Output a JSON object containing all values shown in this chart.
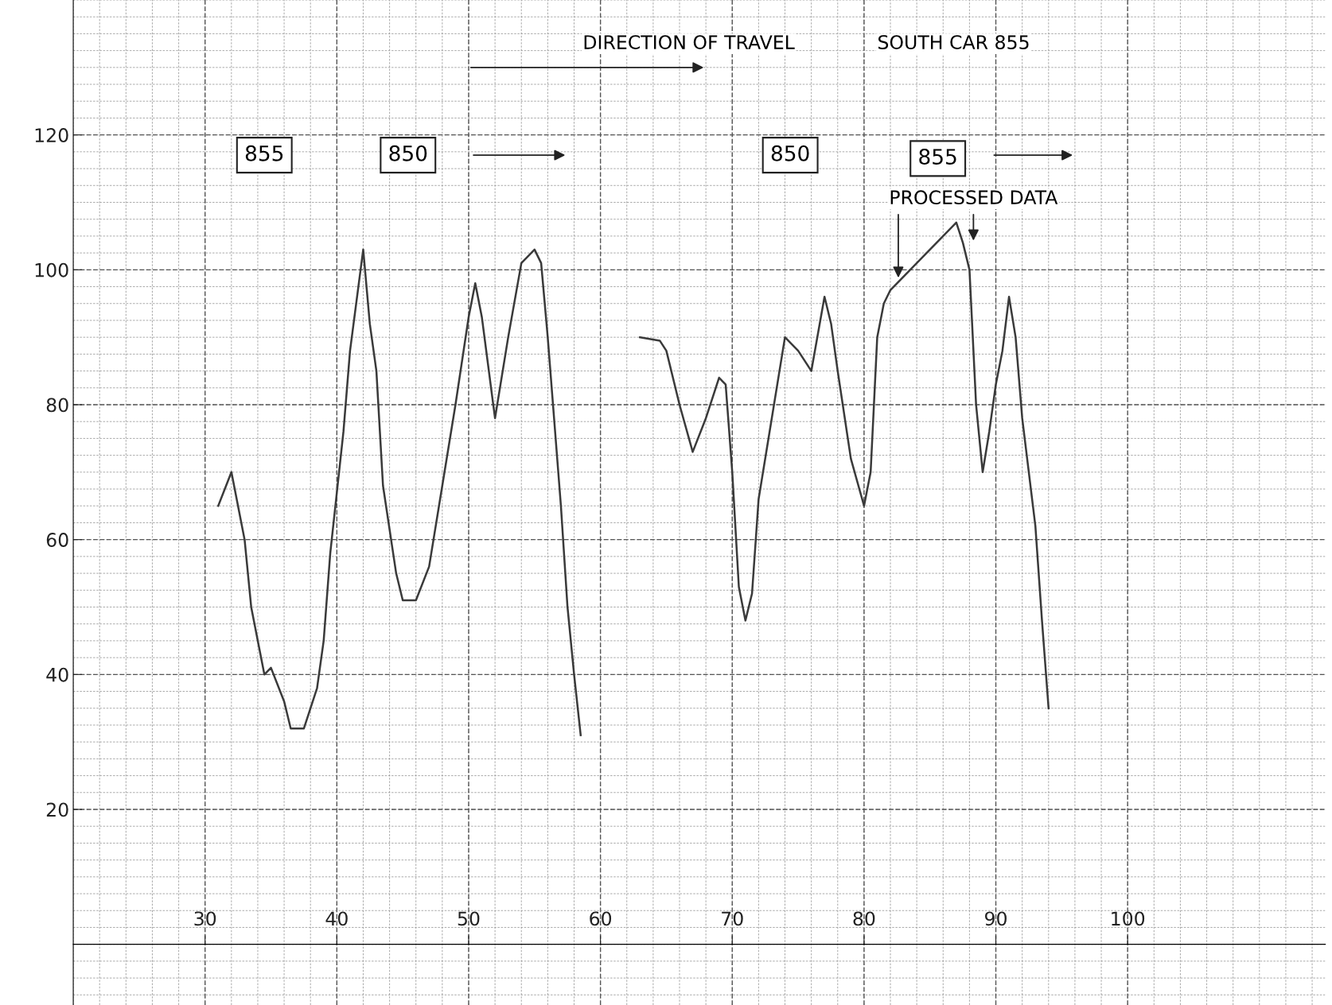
{
  "chart_data": {
    "type": "line",
    "x": [
      31,
      32,
      33,
      33.5,
      34.5,
      35,
      36,
      36.5,
      37.5,
      38.5,
      39,
      39.5,
      40.5,
      41,
      42,
      42.5,
      43,
      43.5,
      44.5,
      45,
      46,
      47,
      48,
      49,
      50,
      50.5,
      51,
      52,
      53,
      54,
      55,
      55.5,
      56,
      57,
      57.5,
      58,
      58.5,
      60,
      63,
      64.5,
      65,
      66,
      67,
      68,
      69,
      69.5,
      70,
      70.5,
      71,
      71.5,
      72,
      73,
      74,
      75,
      76,
      77,
      77.5,
      78,
      79,
      80,
      80.5,
      81,
      81.5,
      82,
      87,
      87.5,
      88,
      88.5,
      89,
      89.5,
      90,
      90.5,
      91,
      91.5,
      92,
      93,
      93.5,
      94
    ],
    "series": [
      {
        "color": "#3a3a3a",
        "values": [
          65,
          70,
          60,
          50,
          40,
          41,
          36,
          32,
          32,
          38,
          45,
          58,
          76,
          88,
          103,
          92,
          85,
          68,
          55,
          51,
          51,
          56,
          68,
          80,
          93,
          98,
          93,
          78,
          90,
          101,
          103,
          101,
          90,
          65,
          50,
          40,
          31,
          null,
          90,
          89.5,
          88,
          80,
          73,
          78,
          84,
          83,
          70,
          53,
          48,
          52,
          66,
          78,
          90,
          88,
          85,
          96,
          92,
          85,
          72,
          65,
          70,
          90,
          95,
          97,
          107,
          104,
          100,
          80,
          70,
          76,
          83,
          88,
          96,
          90,
          78,
          62,
          48,
          35
        ]
      }
    ],
    "xlim": [
      20,
      115
    ],
    "ylim": [
      -9,
      140
    ],
    "xticks": [
      30,
      40,
      50,
      60,
      70,
      80,
      90,
      100
    ],
    "yticks": [
      20,
      40,
      60,
      80,
      100,
      120
    ],
    "grid": true,
    "legend": false,
    "marker": "none",
    "line_style": "solid",
    "annotations": [
      "DIRECTION OF TRAVEL",
      "SOUTH CAR 855",
      "855",
      "850",
      "850",
      "855",
      {
        "text": "PROCESSED DATA",
        "x": 82.6,
        "y": 98.5
      }
    ]
  }
}
